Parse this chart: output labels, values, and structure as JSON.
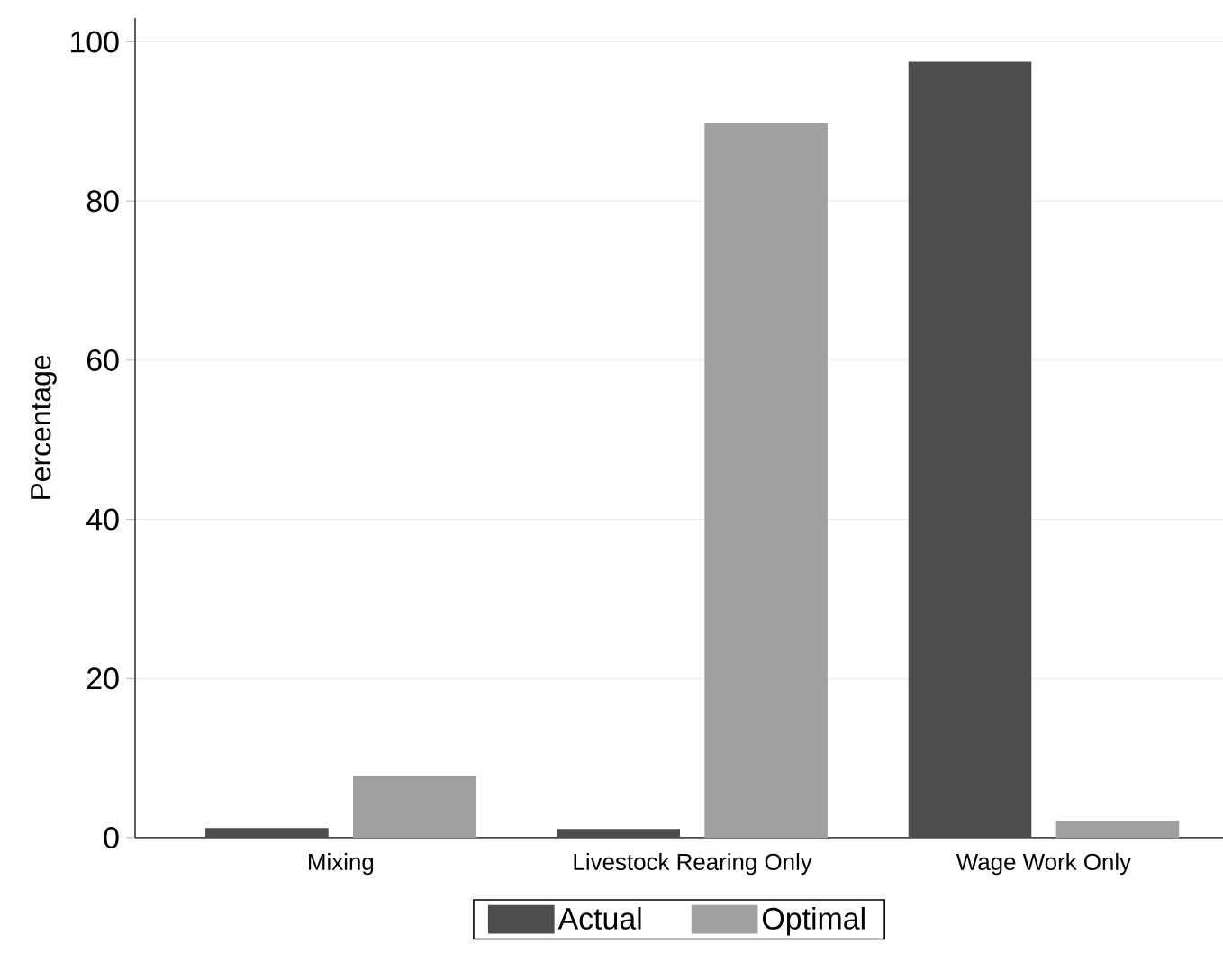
{
  "chart_data": {
    "type": "bar",
    "ylabel": "Percentage",
    "categories": [
      "Mixing",
      "Livestock Rearing Only",
      "Wage Work Only"
    ],
    "series": [
      {
        "name": "Actual",
        "color": "#4d4d4d",
        "values": [
          1.2,
          1.1,
          97.5
        ]
      },
      {
        "name": "Optimal",
        "color": "#a0a0a0",
        "values": [
          7.8,
          89.8,
          2.1
        ]
      }
    ],
    "ylim": [
      0,
      103
    ],
    "yticks": [
      0,
      20,
      40,
      60,
      80,
      100
    ],
    "grid": "y",
    "legend": "bottom"
  }
}
